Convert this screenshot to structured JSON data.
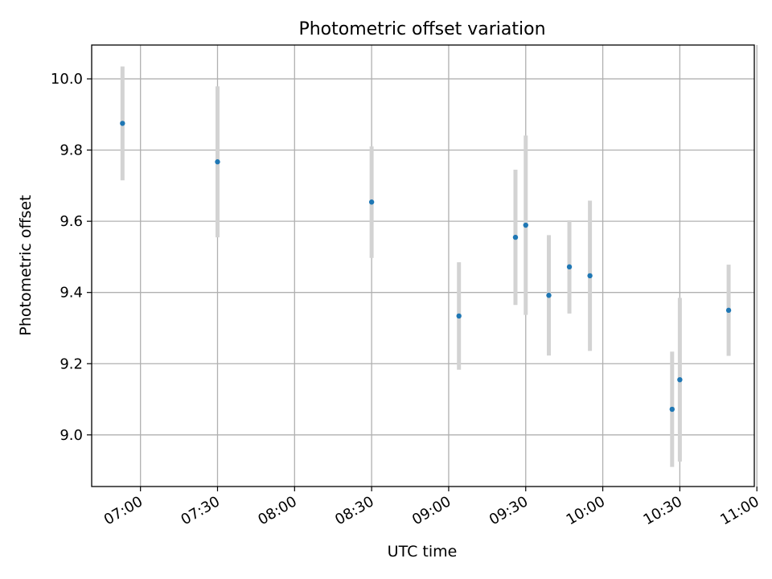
{
  "chart_data": {
    "type": "scatter",
    "title": "Photometric offset variation",
    "xlabel": "UTC time",
    "ylabel": "Photometric offset",
    "x_axis_type": "time",
    "xlim": [
      "06:41",
      "10:59"
    ],
    "ylim": [
      8.855,
      10.095
    ],
    "x_ticks": [
      "07:00",
      "07:30",
      "08:00",
      "08:30",
      "09:00",
      "09:30",
      "10:00",
      "10:30",
      "11:00"
    ],
    "y_ticks": [
      9.0,
      9.2,
      9.4,
      9.6,
      9.8,
      10.0
    ],
    "y_tick_labels": [
      "9.0",
      "9.2",
      "9.4",
      "9.6",
      "9.8",
      "10.0"
    ],
    "grid": true,
    "marker_color": "#1f77b4",
    "errorbar_color": "#d3d3d3",
    "points": [
      {
        "x": "06:53",
        "y": 9.875,
        "err_low": 9.715,
        "err_high": 10.035
      },
      {
        "x": "07:30",
        "y": 9.767,
        "err_low": 9.555,
        "err_high": 9.979
      },
      {
        "x": "08:30",
        "y": 9.654,
        "err_low": 9.497,
        "err_high": 9.81
      },
      {
        "x": "09:04",
        "y": 9.334,
        "err_low": 9.183,
        "err_high": 9.485
      },
      {
        "x": "09:26",
        "y": 9.555,
        "err_low": 9.365,
        "err_high": 9.745
      },
      {
        "x": "09:30",
        "y": 9.589,
        "err_low": 9.337,
        "err_high": 9.841
      },
      {
        "x": "09:39",
        "y": 9.392,
        "err_low": 9.223,
        "err_high": 9.561
      },
      {
        "x": "09:47",
        "y": 9.472,
        "err_low": 9.341,
        "err_high": 9.603
      },
      {
        "x": "09:55",
        "y": 9.447,
        "err_low": 9.236,
        "err_high": 9.658
      },
      {
        "x": "10:27",
        "y": 9.072,
        "err_low": 8.91,
        "err_high": 9.234
      },
      {
        "x": "10:30",
        "y": 9.155,
        "err_low": 8.925,
        "err_high": 9.385
      },
      {
        "x": "10:49",
        "y": 9.35,
        "err_low": 9.222,
        "err_high": 9.478
      }
    ]
  }
}
